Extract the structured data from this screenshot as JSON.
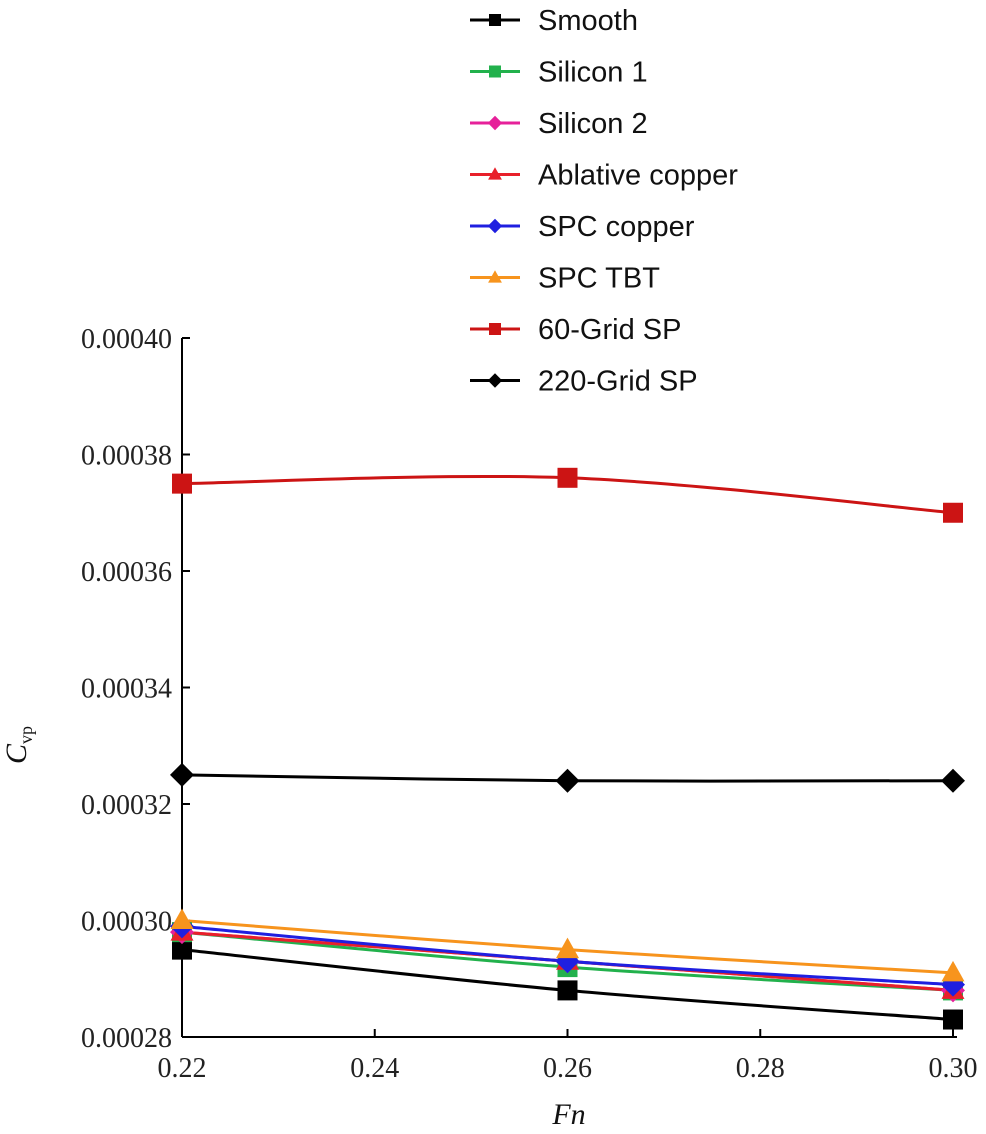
{
  "chart_data": {
    "type": "line",
    "xlabel": "Fn",
    "ylabel": {
      "main": "C",
      "sub": "vp"
    },
    "x": [
      0.22,
      0.26,
      0.3
    ],
    "x_ticks": [
      "0.22",
      "0.24",
      "0.26",
      "0.28",
      "0.30"
    ],
    "y_ticks": [
      "0.00028",
      "0.00030",
      "0.00032",
      "0.00034",
      "0.00036",
      "0.00038",
      "0.00040"
    ],
    "xlim": [
      0.22,
      0.3
    ],
    "ylim": [
      0.00028,
      0.0004
    ],
    "grid": false,
    "legend_position": "top-right",
    "series": [
      {
        "name": "Smooth",
        "color": "#000000",
        "marker": "square",
        "values": [
          0.000295,
          0.000288,
          0.000283
        ]
      },
      {
        "name": "Silicon 1",
        "color": "#22b14c",
        "marker": "square",
        "values": [
          0.000298,
          0.000292,
          0.000288
        ]
      },
      {
        "name": "Silicon 2",
        "color": "#e6219a",
        "marker": "diamond",
        "values": [
          0.000298,
          0.000293,
          0.000288
        ]
      },
      {
        "name": "Ablative copper",
        "color": "#e8202a",
        "marker": "triangle",
        "values": [
          0.000298,
          0.000293,
          0.000288
        ]
      },
      {
        "name": "SPC copper",
        "color": "#1f1fe0",
        "marker": "diamond",
        "values": [
          0.000299,
          0.000293,
          0.000289
        ]
      },
      {
        "name": "SPC TBT",
        "color": "#f7941d",
        "marker": "triangle",
        "values": [
          0.0003,
          0.000295,
          0.000291
        ]
      },
      {
        "name": "60-Grid SP",
        "color": "#cc1414",
        "marker": "square",
        "values": [
          0.000375,
          0.000376,
          0.00037
        ]
      },
      {
        "name": "220-Grid SP",
        "color": "#000000",
        "marker": "diamond",
        "values": [
          0.000325,
          0.000324,
          0.000324
        ]
      }
    ]
  }
}
